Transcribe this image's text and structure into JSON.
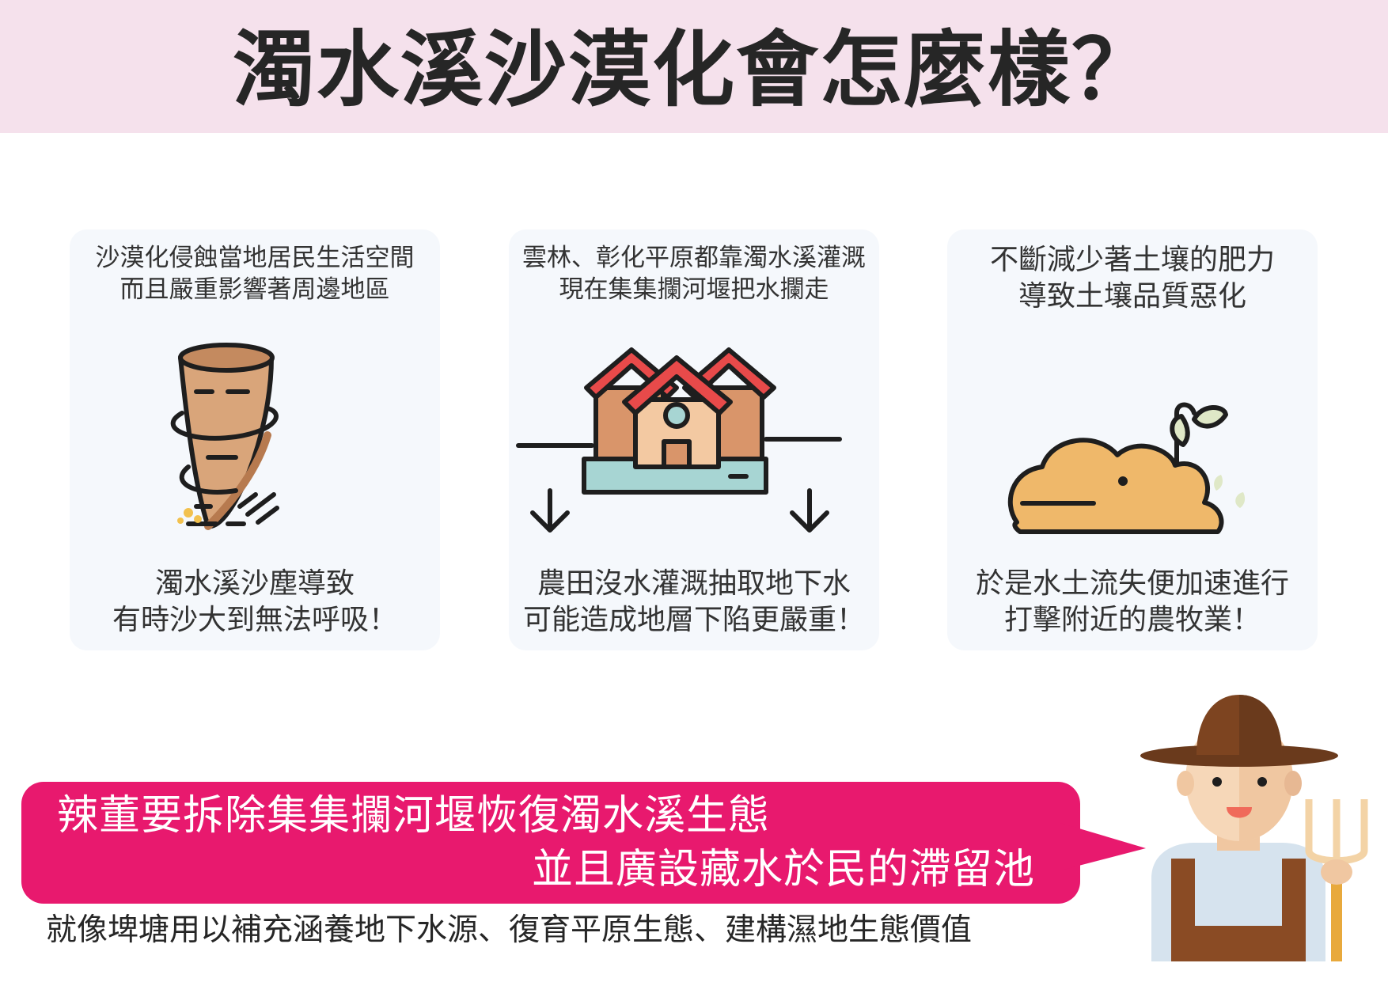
{
  "title": "濁水溪沙漠化會怎麼樣？",
  "cards": [
    {
      "top_lines": [
        "沙漠化侵蝕當地居民生活空間",
        "而且嚴重影響著周邊地區"
      ],
      "icon": "tornado-icon",
      "bottom_lines": [
        "濁水溪沙塵導致",
        "有時沙大到無法呼吸！"
      ]
    },
    {
      "top_lines": [
        "雲林、彰化平原都靠濁水溪灌溉",
        "現在集集攔河堰把水攔走"
      ],
      "icon": "sinking-houses-icon",
      "bottom_lines": [
        "農田沒水灌溉抽取地下水",
        "可能造成地層下陷更嚴重！"
      ]
    },
    {
      "top_lines": [
        "不斷減少著土壤的肥力",
        "導致土壤品質惡化"
      ],
      "icon": "soil-sprout-icon",
      "bottom_lines": [
        "於是水土流失便加速進行",
        "打擊附近的農牧業！"
      ]
    }
  ],
  "speech": {
    "line1": "辣董要拆除集集攔河堰恢復濁水溪生態",
    "line2": "並且廣設藏水於民的滯留池"
  },
  "footnote": "就像埤塘用以補充涵養地下水源、復育平原生態、建構濕地生態價值",
  "colors": {
    "header_bg": "#f5e1ec",
    "card_bg": "#f5f8fc",
    "bubble": "#e8196e",
    "roof": "#e84a4a",
    "house": "#d9956a",
    "soil": "#efb86a"
  }
}
